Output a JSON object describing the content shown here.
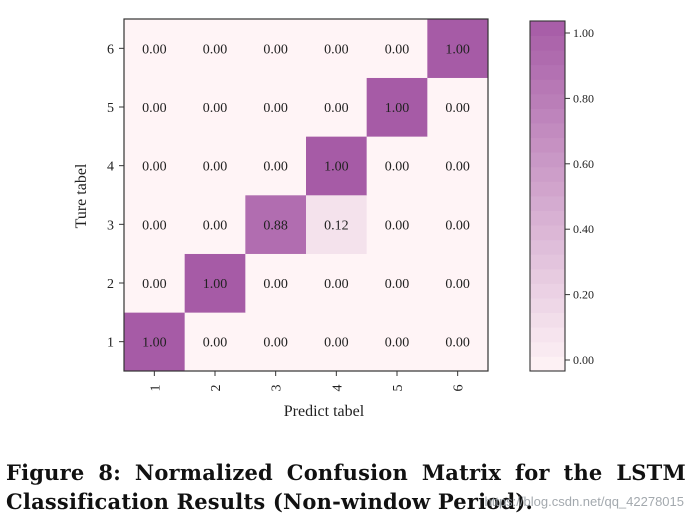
{
  "chart_data": {
    "type": "heatmap",
    "title": "",
    "xlabel": "Predict tabel",
    "ylabel": "Ture tabel",
    "x_categories": [
      "1",
      "2",
      "3",
      "4",
      "5",
      "6"
    ],
    "y_categories": [
      "1",
      "2",
      "3",
      "4",
      "5",
      "6"
    ],
    "values": [
      [
        1.0,
        0.0,
        0.0,
        0.0,
        0.0,
        0.0
      ],
      [
        0.0,
        1.0,
        0.0,
        0.0,
        0.0,
        0.0
      ],
      [
        0.0,
        0.0,
        0.88,
        0.12,
        0.0,
        0.0
      ],
      [
        0.0,
        0.0,
        0.0,
        1.0,
        0.0,
        0.0
      ],
      [
        0.0,
        0.0,
        0.0,
        0.0,
        1.0,
        0.0
      ],
      [
        0.0,
        0.0,
        0.0,
        0.0,
        0.0,
        1.0
      ]
    ],
    "value_labels": [
      [
        "1.00",
        "0.00",
        "0.00",
        "0.00",
        "0.00",
        "0.00"
      ],
      [
        "0.00",
        "1.00",
        "0.00",
        "0.00",
        "0.00",
        "0.00"
      ],
      [
        "0.00",
        "0.00",
        "0.88",
        "0.12",
        "0.00",
        "0.00"
      ],
      [
        "0.00",
        "0.00",
        "0.00",
        "1.00",
        "0.00",
        "0.00"
      ],
      [
        "0.00",
        "0.00",
        "0.00",
        "0.00",
        "1.00",
        "0.00"
      ],
      [
        "0.00",
        "0.00",
        "0.00",
        "0.00",
        "0.00",
        "1.00"
      ]
    ],
    "colorbar": {
      "range": [
        0,
        1
      ],
      "tick_values": [
        0.0,
        0.2,
        0.4,
        0.6,
        0.8,
        1.0
      ],
      "tick_labels": [
        "0.00",
        "0.20",
        "0.40",
        "0.60",
        "0.80",
        "1.00"
      ],
      "low_color": "#fff4f6",
      "high_color": "#a65ba6"
    }
  },
  "caption": {
    "line1_words": [
      "Figure",
      "8:",
      "Normalized",
      "Confusion",
      "Matrix",
      "for",
      "the",
      "LSTM"
    ],
    "line2": "Classification Results (Non-window Period)."
  },
  "watermark": "https://blog.csdn.net/qq_42278015"
}
